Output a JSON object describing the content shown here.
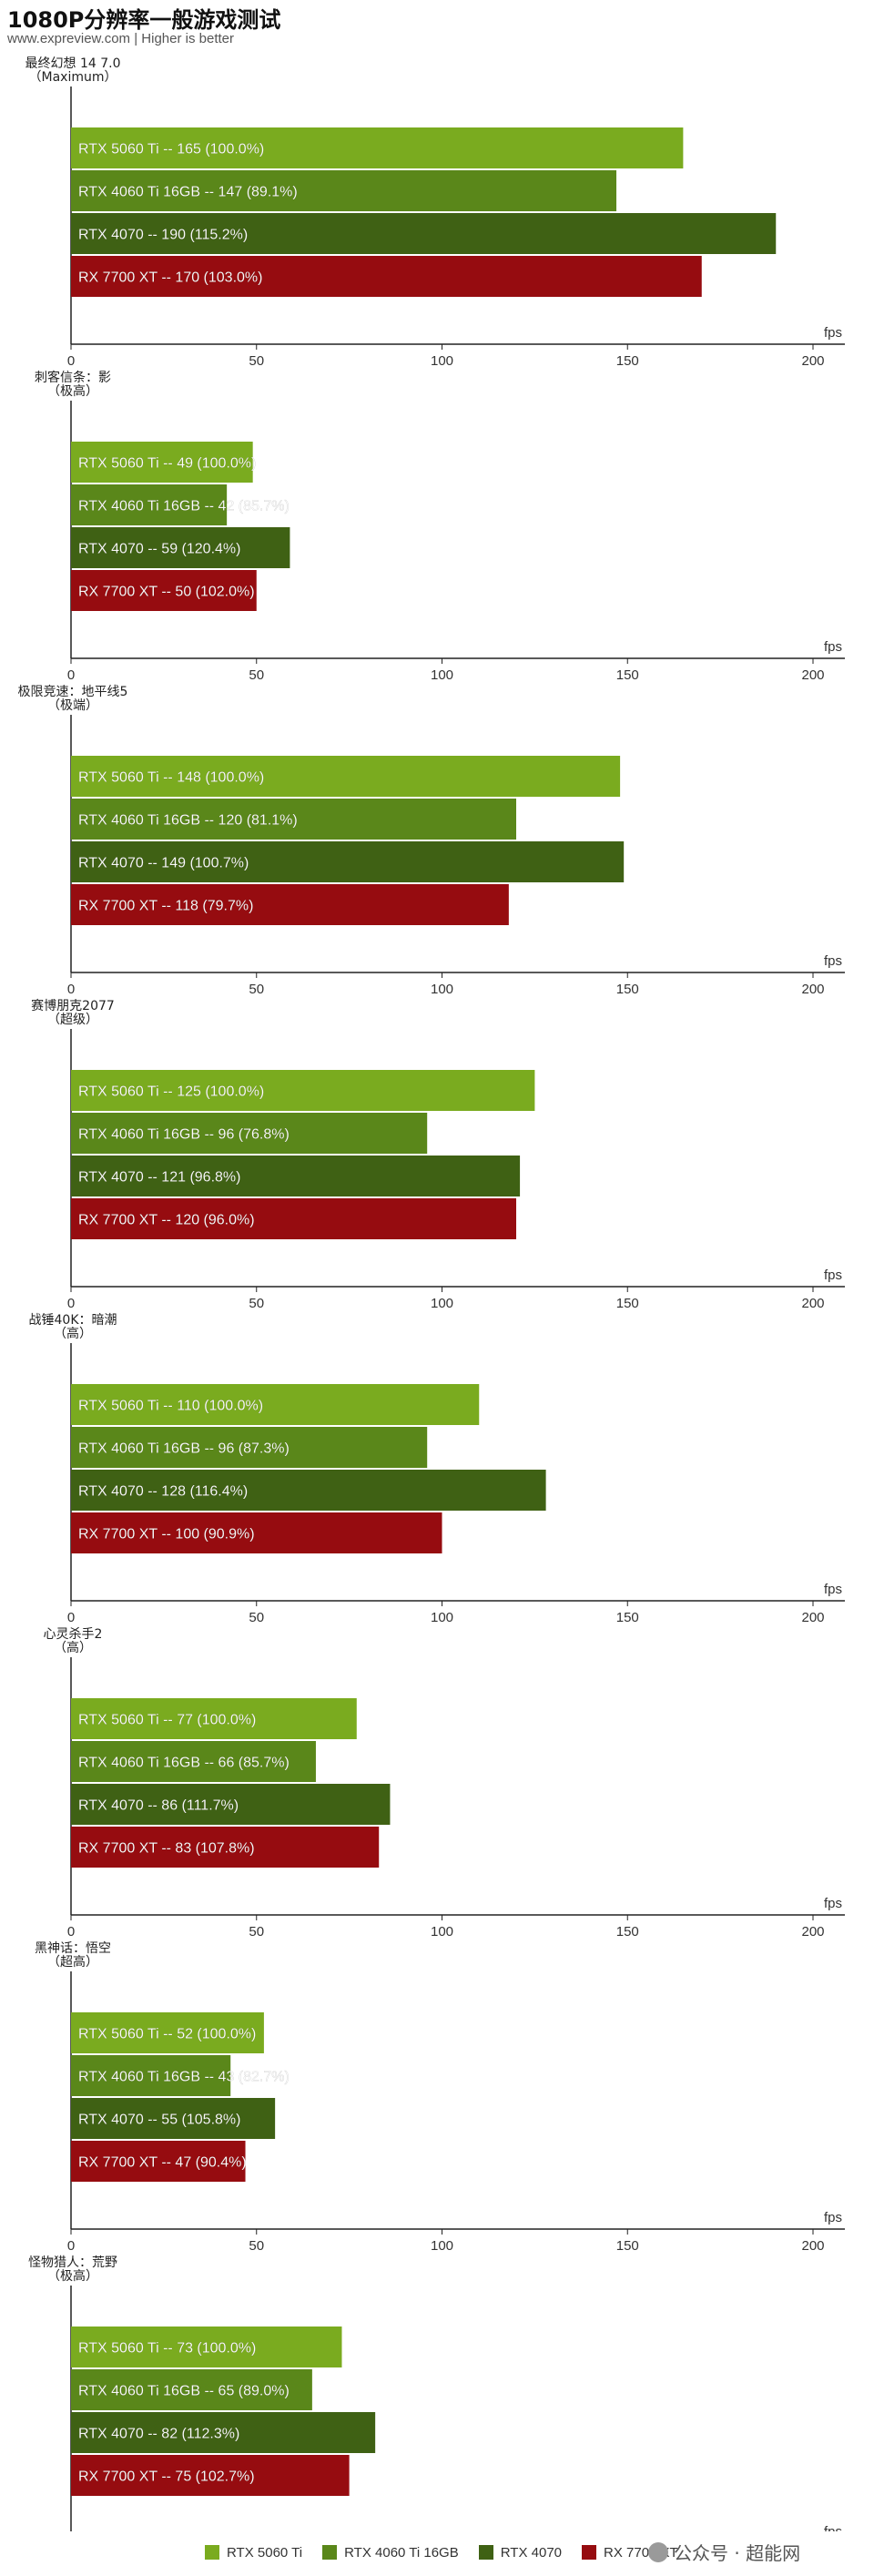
{
  "header": {
    "title": "1080P分辨率一般游戏测试",
    "subtitle": "www.expreview.com | Higher is better"
  },
  "legend": [
    {
      "label": "RTX 5060 Ti",
      "color": "#7aab1f"
    },
    {
      "label": "RTX 4060 Ti 16GB",
      "color": "#5a871a"
    },
    {
      "label": "RTX 4070",
      "color": "#3f6114"
    },
    {
      "label": "RX 7700 XT",
      "color": "#960c10"
    }
  ],
  "watermark": "公众号 · 超能网",
  "chart_data": [
    {
      "type": "bar",
      "title": "最终幻想 14 7.0",
      "subtitle": "（Maximum）",
      "xlabel": "fps",
      "xlim": [
        0,
        200
      ],
      "xticks": [
        0,
        50,
        100,
        150,
        200
      ],
      "categories": [
        "RTX 5060 Ti",
        "RTX 4060 Ti 16GB",
        "RTX 4070",
        "RX 7700 XT"
      ],
      "values": [
        165,
        147,
        190,
        170
      ],
      "percents": [
        "100.0%",
        "89.1%",
        "115.2%",
        "103.0%"
      ]
    },
    {
      "type": "bar",
      "title": "刺客信条：影",
      "subtitle": "（极高）",
      "xlabel": "fps",
      "xlim": [
        0,
        200
      ],
      "xticks": [
        0,
        50,
        100,
        150,
        200
      ],
      "categories": [
        "RTX 5060 Ti",
        "RTX 4060 Ti 16GB",
        "RTX 4070",
        "RX 7700 XT"
      ],
      "values": [
        49,
        42,
        59,
        50
      ],
      "percents": [
        "100.0%",
        "85.7%",
        "120.4%",
        "102.0%"
      ]
    },
    {
      "type": "bar",
      "title": "极限竞速：地平线5",
      "subtitle": "（极端）",
      "xlabel": "fps",
      "xlim": [
        0,
        200
      ],
      "xticks": [
        0,
        50,
        100,
        150,
        200
      ],
      "categories": [
        "RTX 5060 Ti",
        "RTX 4060 Ti 16GB",
        "RTX 4070",
        "RX 7700 XT"
      ],
      "values": [
        148,
        120,
        149,
        118
      ],
      "percents": [
        "100.0%",
        "81.1%",
        "100.7%",
        "79.7%"
      ]
    },
    {
      "type": "bar",
      "title": "赛博朋克2077",
      "subtitle": "（超级）",
      "xlabel": "fps",
      "xlim": [
        0,
        200
      ],
      "xticks": [
        0,
        50,
        100,
        150,
        200
      ],
      "categories": [
        "RTX 5060 Ti",
        "RTX 4060 Ti 16GB",
        "RTX 4070",
        "RX 7700 XT"
      ],
      "values": [
        125,
        96,
        121,
        120
      ],
      "percents": [
        "100.0%",
        "76.8%",
        "96.8%",
        "96.0%"
      ]
    },
    {
      "type": "bar",
      "title": "战锤40K：暗潮",
      "subtitle": "（高）",
      "xlabel": "fps",
      "xlim": [
        0,
        200
      ],
      "xticks": [
        0,
        50,
        100,
        150,
        200
      ],
      "categories": [
        "RTX 5060 Ti",
        "RTX 4060 Ti 16GB",
        "RTX 4070",
        "RX 7700 XT"
      ],
      "values": [
        110,
        96,
        128,
        100
      ],
      "percents": [
        "100.0%",
        "87.3%",
        "116.4%",
        "90.9%"
      ]
    },
    {
      "type": "bar",
      "title": "心灵杀手2",
      "subtitle": "（高）",
      "xlabel": "fps",
      "xlim": [
        0,
        200
      ],
      "xticks": [
        0,
        50,
        100,
        150,
        200
      ],
      "categories": [
        "RTX 5060 Ti",
        "RTX 4060 Ti 16GB",
        "RTX 4070",
        "RX 7700 XT"
      ],
      "values": [
        77,
        66,
        86,
        83
      ],
      "percents": [
        "100.0%",
        "85.7%",
        "111.7%",
        "107.8%"
      ]
    },
    {
      "type": "bar",
      "title": "黑神话：悟空",
      "subtitle": "（超高）",
      "xlabel": "fps",
      "xlim": [
        0,
        200
      ],
      "xticks": [
        0,
        50,
        100,
        150,
        200
      ],
      "categories": [
        "RTX 5060 Ti",
        "RTX 4060 Ti 16GB",
        "RTX 4070",
        "RX 7700 XT"
      ],
      "values": [
        52,
        43,
        55,
        47
      ],
      "percents": [
        "100.0%",
        "82.7%",
        "105.8%",
        "90.4%"
      ]
    },
    {
      "type": "bar",
      "title": "怪物猎人：荒野",
      "subtitle": "（极高）",
      "xlabel": "fps",
      "xlim": [
        0,
        200
      ],
      "xticks": [
        0,
        50,
        100,
        150,
        200
      ],
      "categories": [
        "RTX 5060 Ti",
        "RTX 4060 Ti 16GB",
        "RTX 4070",
        "RX 7700 XT"
      ],
      "values": [
        73,
        65,
        82,
        75
      ],
      "percents": [
        "100.0%",
        "89.0%",
        "112.3%",
        "102.7%"
      ]
    }
  ]
}
